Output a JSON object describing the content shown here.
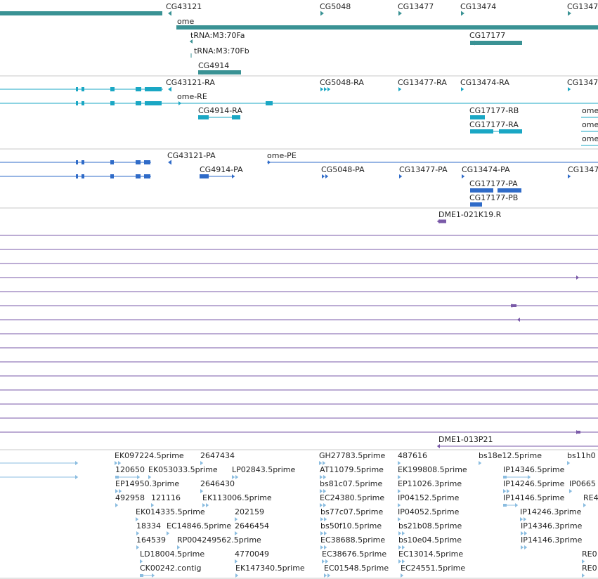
{
  "colors": {
    "separator": "#c9c9c9",
    "gene": "#3a9294",
    "mrna": "#1aa7c4",
    "cds": "#2f6bc8",
    "clone": "#7a5aa8",
    "est": "#8bbde0"
  },
  "tracks": {
    "genes": {
      "labels": [
        "CG43121",
        "CG5048",
        "CG13477",
        "CG13474",
        "CG1347",
        "ome",
        "tRNA:M3:70Fa",
        "CG17177",
        "tRNA:M3:70Fb",
        "CG4914"
      ]
    },
    "mrna": {
      "labels": [
        "CG43121-RA",
        "CG5048-RA",
        "CG13477-RA",
        "CG13474-RA",
        "CG1347",
        "ome-RE",
        "CG4914-RA",
        "CG17177-RB",
        "ome",
        "CG17177-RA",
        "ome",
        "ome"
      ]
    },
    "cds": {
      "labels": [
        "CG43121-PA",
        "ome-PE",
        "CG4914-PA",
        "CG5048-PA",
        "CG13477-PA",
        "CG13474-PA",
        "CG1347",
        "CG17177-PA",
        "CG17177-PB"
      ]
    },
    "clones": {
      "labels": [
        "DME1-021K19.R",
        "DME1-013P21"
      ]
    },
    "ests": {
      "labels": [
        "EK097224.5prime",
        "2647434",
        "GH27783.5prime",
        "487616",
        "bs18e12.5prime",
        "bs11h0",
        "120650",
        "EK053033.5prime",
        "LP02843.5prime",
        "AT11079.5prime",
        "EK199808.5prime",
        "IP14346.5prime",
        "EP14950.3prime",
        "2646430",
        "bs81c07.5prime",
        "EP11026.3prime",
        "IP14246.5prime",
        "IP0665",
        "492958",
        "121116",
        "EK113006.5prime",
        "EC24380.5prime",
        "IP04152.5prime",
        "IP14146.5prime",
        "RE4",
        "EK014335.5prime",
        "202159",
        "bs77c07.5prime",
        "IP04052.5prime",
        "IP14246.3prime",
        "18334",
        "EC14846.5prime",
        "2646454",
        "bs50f10.5prime",
        "bs21b08.5prime",
        "IP14346.3prime",
        "164539",
        "RP004249562.5prime",
        "EC38688.5prime",
        "bs10e04.5prime",
        "IP14146.3prime",
        "LD18004.5prime",
        "4770049",
        "EC38676.5prime",
        "EC13014.5prime",
        "RE0",
        "CK00242.contig",
        "EK147340.5prime",
        "EC01548.5prime",
        "EC24551.5prime",
        "RE0"
      ]
    }
  }
}
